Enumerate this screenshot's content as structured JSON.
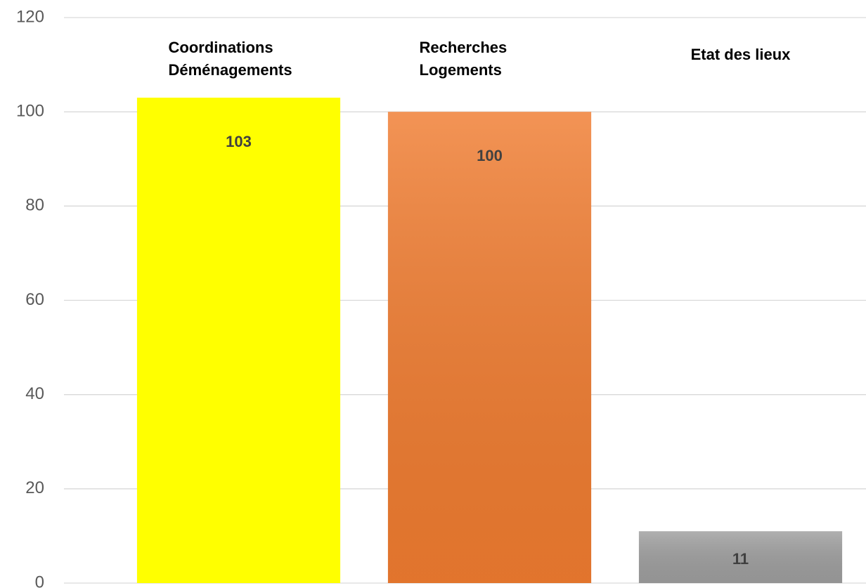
{
  "chart_data": {
    "type": "bar",
    "categories": [
      "Coordinations Déménagements",
      "Recherches Logements",
      "Etat des lieux"
    ],
    "values": [
      103,
      100,
      11
    ],
    "colors": [
      "#ffff00",
      "#f07c30",
      "#9e9e9e"
    ],
    "ylim": [
      0,
      120
    ],
    "yticks": [
      0,
      20,
      40,
      60,
      80,
      100,
      120
    ],
    "grid": true
  }
}
